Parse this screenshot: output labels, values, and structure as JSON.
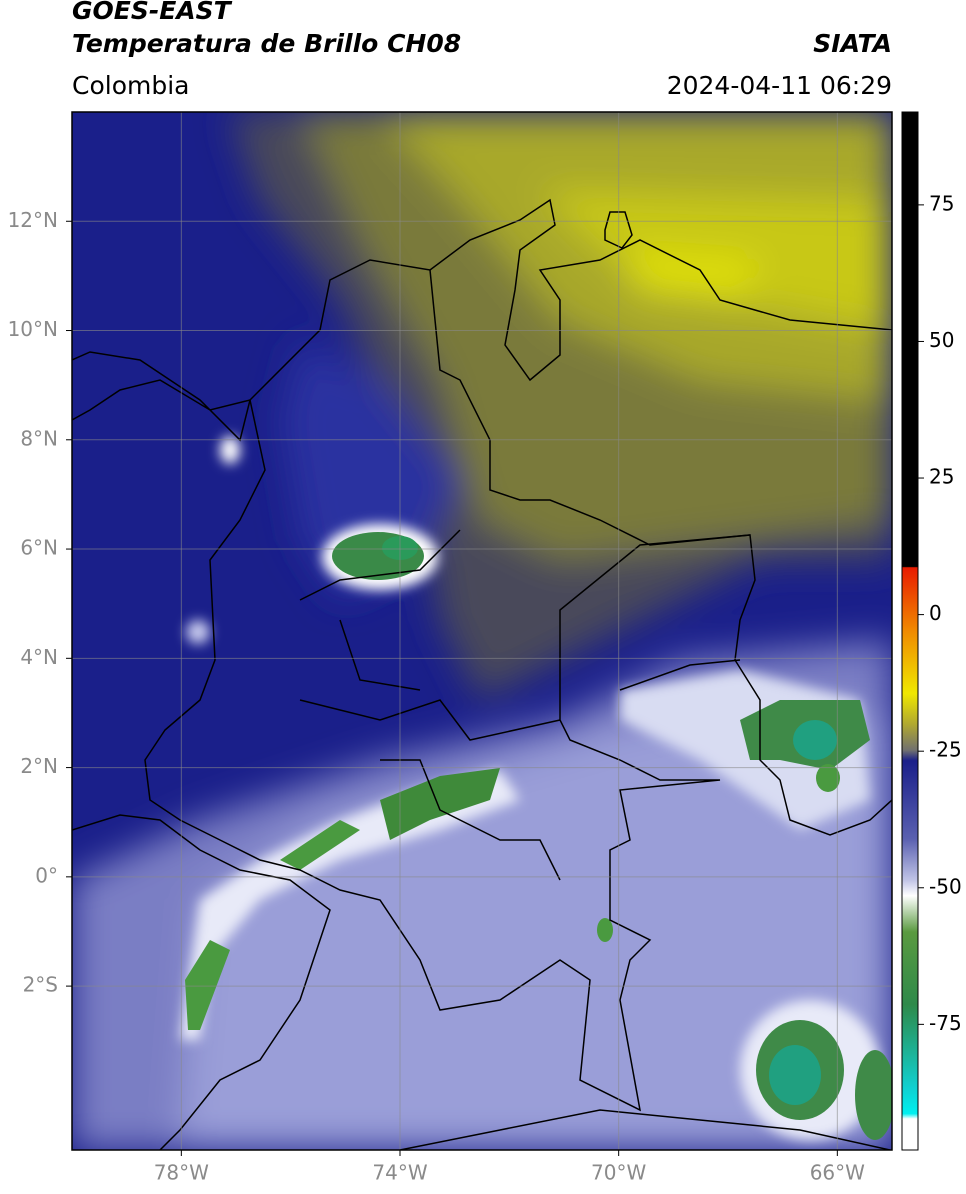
{
  "header": {
    "title": "GOES-EAST",
    "subtitle": "Temperatura de Brillo CH08",
    "source": "SIATA",
    "region": "Colombia",
    "datetime": "2024-04-11 06:29"
  },
  "map": {
    "xlim": [
      -80,
      -65
    ],
    "ylim": [
      -5,
      14
    ],
    "grid": true,
    "xticks": [
      {
        "value": -78,
        "label": "78°W"
      },
      {
        "value": -74,
        "label": "74°W"
      },
      {
        "value": -70,
        "label": "70°W"
      },
      {
        "value": -66,
        "label": "66°W"
      }
    ],
    "yticks": [
      {
        "value": 12,
        "label": "12°N"
      },
      {
        "value": 10,
        "label": "10°N"
      },
      {
        "value": 8,
        "label": "8°N"
      },
      {
        "value": 6,
        "label": "6°N"
      },
      {
        "value": 4,
        "label": "4°N"
      },
      {
        "value": 2,
        "label": "2°N"
      },
      {
        "value": 0,
        "label": "0°"
      },
      {
        "value": -2,
        "label": "2°S"
      }
    ]
  },
  "colorbar": {
    "lim": [
      -98,
      92
    ],
    "ticks": [
      75,
      50,
      25,
      0,
      -25,
      -50,
      -75
    ]
  }
}
